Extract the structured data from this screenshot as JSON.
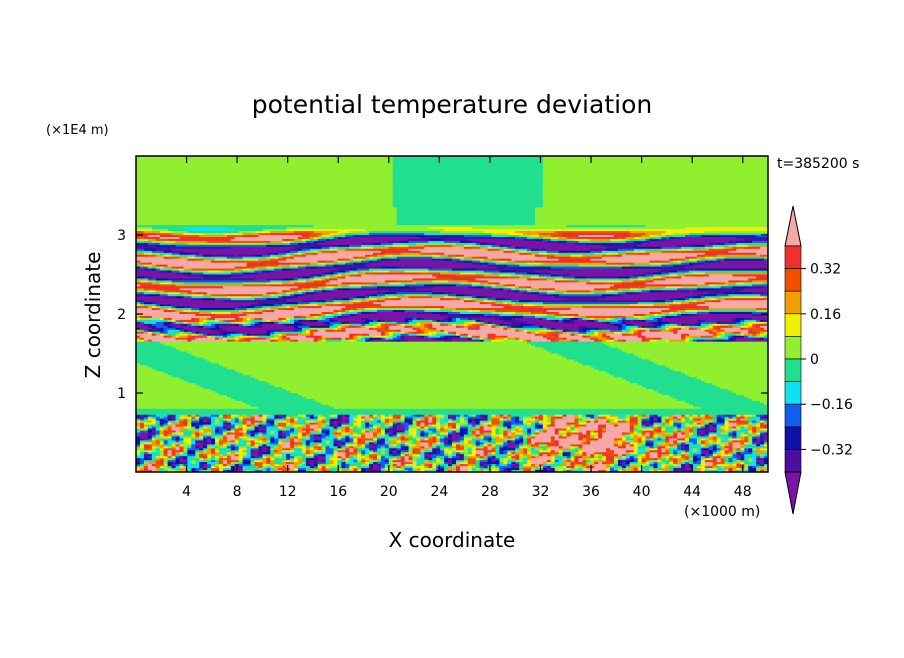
{
  "chart_data": {
    "type": "heatmap",
    "title": "potential temperature deviation",
    "xlabel": "X coordinate",
    "ylabel": "Z coordinate",
    "x_unit": "(×1000 m)",
    "y_unit": "(×1E4 m)",
    "time_label": "t=385200 s",
    "xlim": [
      0,
      50
    ],
    "ylim": [
      0,
      4
    ],
    "xticks": [
      "4",
      "8",
      "12",
      "16",
      "20",
      "24",
      "28",
      "32",
      "36",
      "40",
      "44",
      "48"
    ],
    "yticks": [
      "1",
      "2",
      "3"
    ],
    "colorbar": {
      "labels": [
        "0.32",
        "0.16",
        "0",
        "−0.16",
        "−0.32"
      ],
      "levels": [
        -0.4,
        -0.32,
        -0.24,
        -0.16,
        -0.08,
        0,
        0.08,
        0.16,
        0.24,
        0.32,
        0.4
      ],
      "colors": [
        "#7a13a6",
        "#4b0fa0",
        "#1010a6",
        "#1060f0",
        "#10e0f0",
        "#20e090",
        "#90f030",
        "#f0f000",
        "#f0a000",
        "#f05000",
        "#f03030",
        "#f4a8a8"
      ],
      "extend": "both"
    },
    "bands": [
      {
        "z": [
          0.0,
          0.72
        ],
        "value": "mixed small-scale turbulence, -0.4 to 0.4"
      },
      {
        "z": [
          0.72,
          0.8
        ],
        "value": -0.05
      },
      {
        "z": [
          0.8,
          1.65
        ],
        "value": 0.03
      },
      {
        "z": [
          1.65,
          3.1
        ],
        "value": "alternating layers, -0.4 to 0.4"
      },
      {
        "z": [
          3.1,
          4.0
        ],
        "value": 0.03
      }
    ]
  }
}
